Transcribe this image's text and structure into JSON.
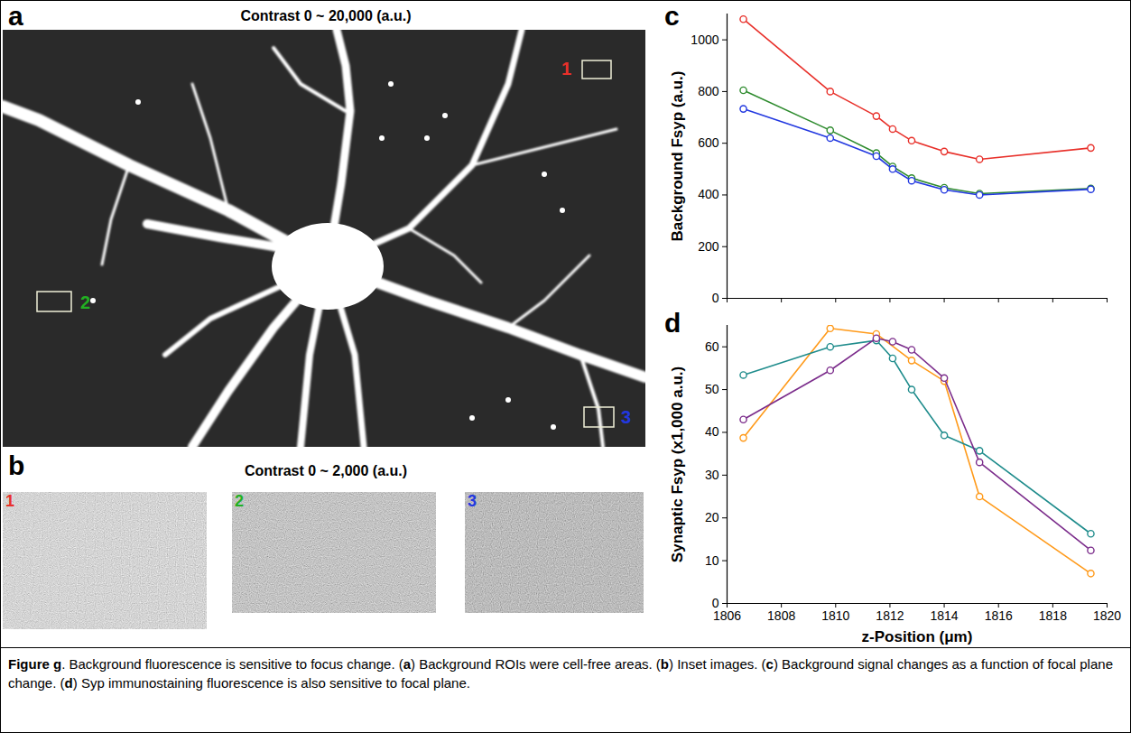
{
  "panels": {
    "a": {
      "panel_label": "a",
      "title": "Contrast 0 ~ 20,000 (a.u.)",
      "rois": [
        {
          "label": "1",
          "color": "#e8302a"
        },
        {
          "label": "2",
          "color": "#22b022"
        },
        {
          "label": "3",
          "color": "#2238e0"
        }
      ]
    },
    "b": {
      "panel_label": "b",
      "title": "Contrast 0 ~ 2,000 (a.u.)",
      "insets": [
        {
          "label": "1",
          "color": "#e8302a"
        },
        {
          "label": "2",
          "color": "#22b022"
        },
        {
          "label": "3",
          "color": "#2238e0"
        }
      ]
    }
  },
  "chart_data": [
    {
      "type": "line",
      "panel_label": "c",
      "ylabel": "Background Fsyp (a.u.)",
      "x": [
        1806.6,
        1809.8,
        1811.5,
        1812.1,
        1812.8,
        1814.0,
        1815.3,
        1819.4
      ],
      "series": [
        {
          "color": "#e8302a",
          "values": [
            1080,
            800,
            705,
            655,
            610,
            568,
            538,
            582
          ]
        },
        {
          "color": "#2e8b2e",
          "values": [
            805,
            650,
            562,
            510,
            465,
            428,
            405,
            425
          ]
        },
        {
          "color": "#2238e0",
          "values": [
            733,
            620,
            550,
            500,
            455,
            420,
            400,
            422
          ]
        }
      ],
      "xlim": [
        1806,
        1820
      ],
      "xticks": [
        1806,
        1808,
        1810,
        1812,
        1814,
        1816,
        1818,
        1820
      ],
      "ylim": [
        0,
        1100
      ],
      "yticks": [
        0,
        200,
        400,
        600,
        800,
        1000
      ],
      "tick_labels": "y",
      "marker": "circle",
      "line_style": "solid",
      "grid": false
    },
    {
      "type": "line",
      "panel_label": "d",
      "xlabel": "z-Position (μm)",
      "ylabel": "Synaptic Fsyp (x1,000 a.u.)",
      "series": [
        {
          "color": "#ff9a1a",
          "x": [
            1806.6,
            1809.8,
            1811.5,
            1812.8,
            1814.0,
            1815.3,
            1819.4
          ],
          "values": [
            38.7,
            64.3,
            63.0,
            56.8,
            52.0,
            25.0,
            7.0
          ]
        },
        {
          "color": "#1f8c8c",
          "x": [
            1806.6,
            1809.8,
            1811.5,
            1812.1,
            1812.8,
            1814.0,
            1815.3,
            1819.4
          ],
          "values": [
            53.4,
            60.0,
            61.5,
            57.3,
            50.0,
            39.3,
            35.7,
            16.3
          ]
        },
        {
          "color": "#7b2c8b",
          "x": [
            1806.6,
            1809.8,
            1811.5,
            1812.1,
            1812.8,
            1814.0,
            1815.3,
            1819.4
          ],
          "values": [
            43.0,
            54.5,
            62.0,
            61.2,
            59.3,
            52.7,
            33.0,
            12.4
          ]
        }
      ],
      "xlim": [
        1806,
        1820
      ],
      "xticks": [
        1806,
        1808,
        1810,
        1812,
        1814,
        1816,
        1818,
        1820
      ],
      "ylim": [
        0,
        65
      ],
      "yticks": [
        0,
        10,
        20,
        30,
        40,
        50,
        60
      ],
      "marker": "circle",
      "line_style": "solid",
      "grid": false
    }
  ],
  "caption": [
    {
      "text": "Figure g",
      "bold": true
    },
    {
      "text": ". Background fluorescence is sensitive to focus change. (",
      "bold": false
    },
    {
      "text": "a",
      "bold": true
    },
    {
      "text": ") Background ROIs were cell-free areas. (",
      "bold": false
    },
    {
      "text": "b",
      "bold": true
    },
    {
      "text": ") Inset images. (",
      "bold": false
    },
    {
      "text": "c",
      "bold": true
    },
    {
      "text": ") Background signal changes as a function of focal plane change. (",
      "bold": false
    },
    {
      "text": "d",
      "bold": true
    },
    {
      "text": ") Syp immunostaining fluorescence is also sensitive to focal plane.",
      "bold": false
    }
  ]
}
